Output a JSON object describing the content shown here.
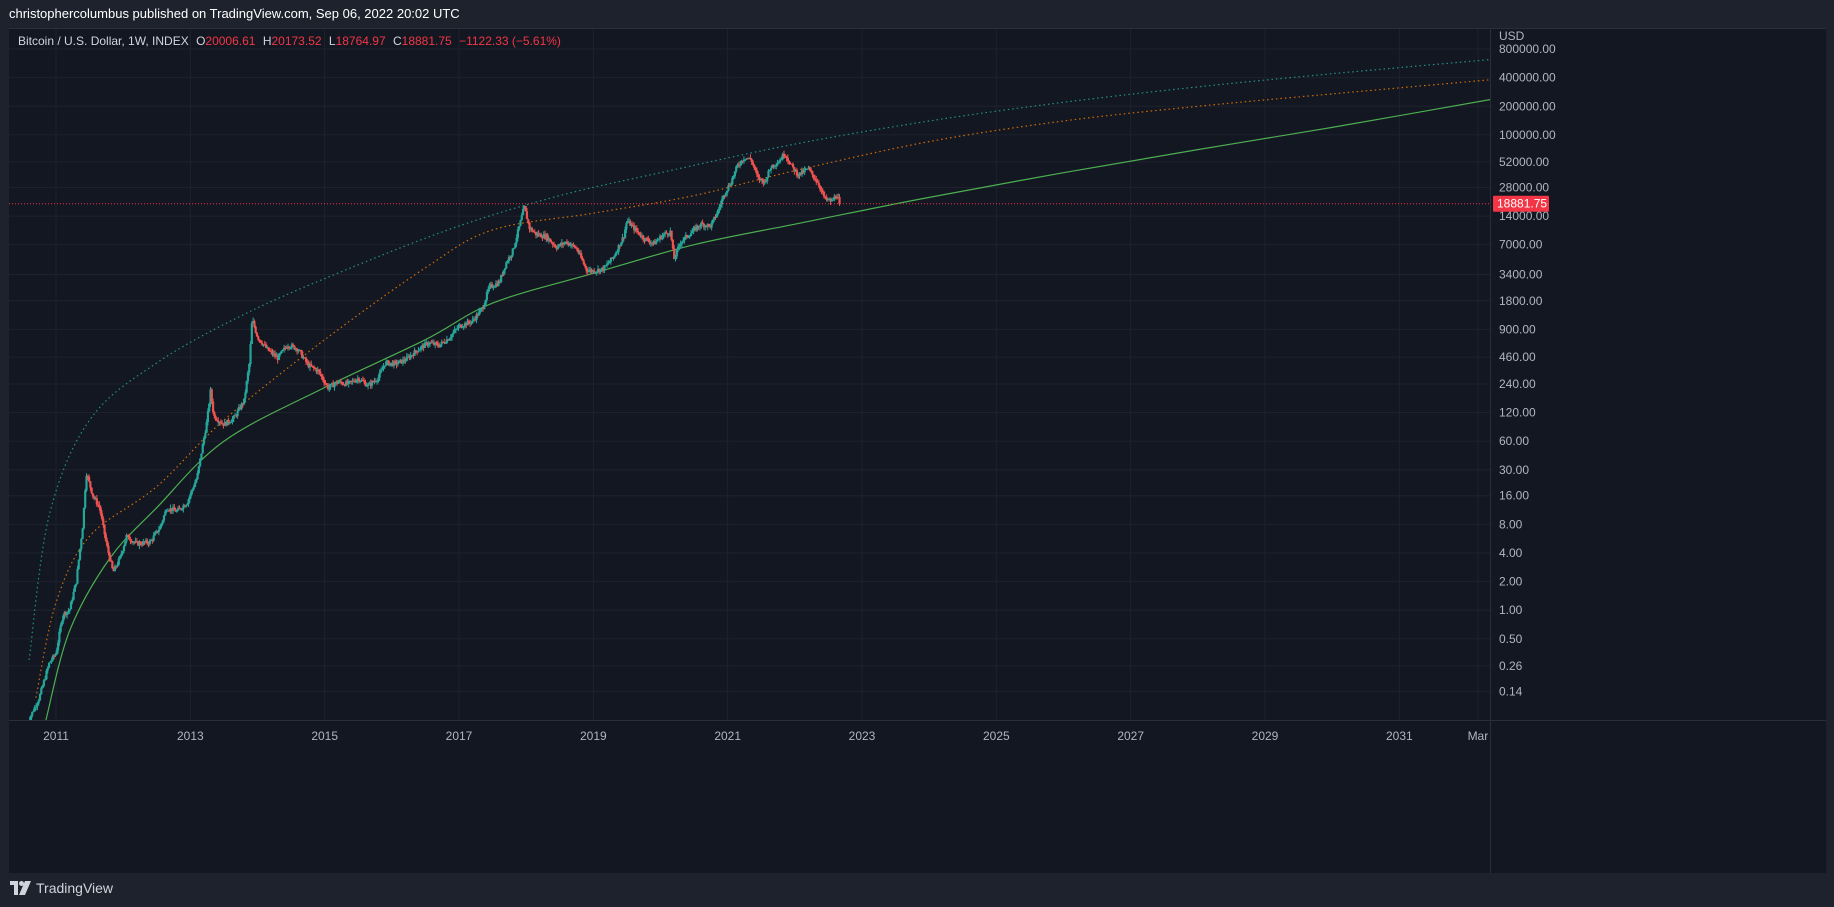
{
  "header": {
    "text": "christophercolumbus published on TradingView.com, Sep 06, 2022 20:02 UTC"
  },
  "legend": {
    "symbol": "Bitcoin / U.S. Dollar, 1W, INDEX",
    "o_label": "O",
    "o_value": "20006.61",
    "h_label": "H",
    "h_value": "20173.52",
    "l_label": "L",
    "l_value": "18764.97",
    "c_label": "C",
    "c_value": "18881.75",
    "change": "−1122.33 (−5.61%)"
  },
  "footer": {
    "brand": "TradingView",
    "logo_icon": "tradingview-logo-icon"
  },
  "colors": {
    "background": "#131722",
    "up": "#26a69a",
    "down": "#ef5350",
    "support": "#4caf50",
    "mid": "#f57c00",
    "top": "#26a69a",
    "price_line": "#f23645"
  },
  "chart_data": {
    "type": "candlestick",
    "title": "Bitcoin / U.S. Dollar, 1W, INDEX",
    "currency_label": "USD",
    "y_scale": "log",
    "ylim": [
      0.07,
      1300000
    ],
    "xlim": [
      2010.3,
      2032.35
    ],
    "y_ticks": [
      {
        "value": 800000,
        "label": "800000.00"
      },
      {
        "value": 400000,
        "label": "400000.00"
      },
      {
        "value": 200000,
        "label": "200000.00"
      },
      {
        "value": 100000,
        "label": "100000.00"
      },
      {
        "value": 52000,
        "label": "52000.00"
      },
      {
        "value": 28000,
        "label": "28000.00"
      },
      {
        "value": 14000,
        "label": "14000.00"
      },
      {
        "value": 7000,
        "label": "7000.00"
      },
      {
        "value": 3400,
        "label": "3400.00"
      },
      {
        "value": 1800,
        "label": "1800.00"
      },
      {
        "value": 900,
        "label": "900.00"
      },
      {
        "value": 460,
        "label": "460.00"
      },
      {
        "value": 240,
        "label": "240.00"
      },
      {
        "value": 120,
        "label": "120.00"
      },
      {
        "value": 60,
        "label": "60.00"
      },
      {
        "value": 30,
        "label": "30.00"
      },
      {
        "value": 16,
        "label": "16.00"
      },
      {
        "value": 8,
        "label": "8.00"
      },
      {
        "value": 4,
        "label": "4.00"
      },
      {
        "value": 2,
        "label": "2.00"
      },
      {
        "value": 1,
        "label": "1.00"
      },
      {
        "value": 0.5,
        "label": "0.50"
      },
      {
        "value": 0.26,
        "label": "0.26"
      },
      {
        "value": 0.14,
        "label": "0.14"
      }
    ],
    "x_ticks": [
      {
        "value": 2011,
        "label": "2011"
      },
      {
        "value": 2013,
        "label": "2013"
      },
      {
        "value": 2015,
        "label": "2015"
      },
      {
        "value": 2017,
        "label": "2017"
      },
      {
        "value": 2019,
        "label": "2019"
      },
      {
        "value": 2021,
        "label": "2021"
      },
      {
        "value": 2023,
        "label": "2023"
      },
      {
        "value": 2025,
        "label": "2025"
      },
      {
        "value": 2027,
        "label": "2027"
      },
      {
        "value": 2029,
        "label": "2029"
      },
      {
        "value": 2031,
        "label": "2031"
      },
      {
        "value": 2032.17,
        "label": "Mar"
      }
    ],
    "last_price": {
      "value": 18881.75,
      "label": "18881.75"
    },
    "price_path": [
      [
        2010.55,
        0.06
      ],
      [
        2010.75,
        0.12
      ],
      [
        2010.9,
        0.28
      ],
      [
        2011.0,
        0.35
      ],
      [
        2011.1,
        0.9
      ],
      [
        2011.2,
        1.0
      ],
      [
        2011.3,
        2.0
      ],
      [
        2011.4,
        8.0
      ],
      [
        2011.45,
        28.0
      ],
      [
        2011.55,
        16.0
      ],
      [
        2011.65,
        12.0
      ],
      [
        2011.75,
        5.0
      ],
      [
        2011.85,
        2.5
      ],
      [
        2011.95,
        3.5
      ],
      [
        2012.05,
        6.0
      ],
      [
        2012.2,
        5.0
      ],
      [
        2012.4,
        5.2
      ],
      [
        2012.55,
        7.5
      ],
      [
        2012.65,
        12.0
      ],
      [
        2012.8,
        11.0
      ],
      [
        2012.95,
        13.5
      ],
      [
        2013.1,
        25.0
      ],
      [
        2013.25,
        100.0
      ],
      [
        2013.3,
        200.0
      ],
      [
        2013.35,
        110.0
      ],
      [
        2013.5,
        90.0
      ],
      [
        2013.65,
        105.0
      ],
      [
        2013.8,
        160.0
      ],
      [
        2013.88,
        400.0
      ],
      [
        2013.92,
        1150.0
      ],
      [
        2014.0,
        750.0
      ],
      [
        2014.15,
        550.0
      ],
      [
        2014.3,
        450.0
      ],
      [
        2014.45,
        620.0
      ],
      [
        2014.6,
        560.0
      ],
      [
        2014.75,
        380.0
      ],
      [
        2014.9,
        330.0
      ],
      [
        2015.05,
        220.0
      ],
      [
        2015.2,
        250.0
      ],
      [
        2015.35,
        240.0
      ],
      [
        2015.5,
        275.0
      ],
      [
        2015.65,
        230.0
      ],
      [
        2015.8,
        280.0
      ],
      [
        2015.9,
        400.0
      ],
      [
        2016.05,
        390.0
      ],
      [
        2016.2,
        430.0
      ],
      [
        2016.4,
        560.0
      ],
      [
        2016.55,
        650.0
      ],
      [
        2016.7,
        610.0
      ],
      [
        2016.85,
        730.0
      ],
      [
        2017.0,
        970.0
      ],
      [
        2017.2,
        1100.0
      ],
      [
        2017.35,
        1500.0
      ],
      [
        2017.45,
        2500.0
      ],
      [
        2017.6,
        2800.0
      ],
      [
        2017.7,
        4500.0
      ],
      [
        2017.8,
        6000.0
      ],
      [
        2017.9,
        11000.0
      ],
      [
        2017.97,
        17500.0
      ],
      [
        2018.05,
        10500.0
      ],
      [
        2018.15,
        9000.0
      ],
      [
        2018.3,
        8500.0
      ],
      [
        2018.45,
        6600.0
      ],
      [
        2018.6,
        7500.0
      ],
      [
        2018.75,
        6400.0
      ],
      [
        2018.9,
        3800.0
      ],
      [
        2019.0,
        3700.0
      ],
      [
        2019.15,
        3900.0
      ],
      [
        2019.3,
        5200.0
      ],
      [
        2019.45,
        8500.0
      ],
      [
        2019.5,
        12500.0
      ],
      [
        2019.6,
        10500.0
      ],
      [
        2019.75,
        8200.0
      ],
      [
        2019.9,
        7200.0
      ],
      [
        2020.05,
        9000.0
      ],
      [
        2020.15,
        9600.0
      ],
      [
        2020.2,
        4900.0
      ],
      [
        2020.3,
        7500.0
      ],
      [
        2020.45,
        9300.0
      ],
      [
        2020.6,
        11500.0
      ],
      [
        2020.75,
        11000.0
      ],
      [
        2020.85,
        15500.0
      ],
      [
        2020.95,
        24000.0
      ],
      [
        2021.05,
        32000.0
      ],
      [
        2021.15,
        48000.0
      ],
      [
        2021.25,
        58000.0
      ],
      [
        2021.35,
        55000.0
      ],
      [
        2021.45,
        35000.0
      ],
      [
        2021.55,
        32000.0
      ],
      [
        2021.65,
        47000.0
      ],
      [
        2021.75,
        52000.0
      ],
      [
        2021.85,
        64000.0
      ],
      [
        2021.95,
        47000.0
      ],
      [
        2022.05,
        38000.0
      ],
      [
        2022.2,
        44000.0
      ],
      [
        2022.35,
        31000.0
      ],
      [
        2022.45,
        21000.0
      ],
      [
        2022.55,
        20000.0
      ],
      [
        2022.62,
        23500.0
      ],
      [
        2022.68,
        18881.75
      ]
    ],
    "curves": [
      {
        "name": "top-band",
        "style": "dotted",
        "color": "#26a69a",
        "points": [
          [
            2010.6,
            0.3
          ],
          [
            2010.9,
            10.0
          ],
          [
            2011.5,
            100.0
          ],
          [
            2012.5,
            400.0
          ],
          [
            2013.9,
            1400.0
          ],
          [
            2015.5,
            4300.0
          ],
          [
            2017.0,
            11000.0
          ],
          [
            2018.5,
            23000.0
          ],
          [
            2020.0,
            40000.0
          ],
          [
            2022.0,
            80000.0
          ],
          [
            2024.0,
            140000.0
          ],
          [
            2026.0,
            220000.0
          ],
          [
            2028.0,
            320000.0
          ],
          [
            2030.0,
            440000.0
          ],
          [
            2032.35,
            620000.0
          ]
        ]
      },
      {
        "name": "mid-band",
        "style": "dotted",
        "color": "#f57c00",
        "points": [
          [
            2010.7,
            0.12
          ],
          [
            2011.0,
            1.2
          ],
          [
            2011.5,
            6.0
          ],
          [
            2012.5,
            20.0
          ],
          [
            2013.5,
            100.0
          ],
          [
            2015.0,
            700.0
          ],
          [
            2016.5,
            4000.0
          ],
          [
            2017.5,
            10000.0
          ],
          [
            2019.0,
            15000.0
          ],
          [
            2020.5,
            23000.0
          ],
          [
            2022.0,
            42000.0
          ],
          [
            2024.0,
            85000.0
          ],
          [
            2026.0,
            140000.0
          ],
          [
            2028.0,
            200000.0
          ],
          [
            2030.0,
            270000.0
          ],
          [
            2032.35,
            380000.0
          ]
        ]
      },
      {
        "name": "support-band",
        "style": "solid",
        "color": "#4caf50",
        "points": [
          [
            2010.85,
            0.07
          ],
          [
            2011.2,
            0.6
          ],
          [
            2011.8,
            3.5
          ],
          [
            2012.5,
            12.0
          ],
          [
            2013.5,
            60.0
          ],
          [
            2015.0,
            220.0
          ],
          [
            2016.5,
            700.0
          ],
          [
            2017.5,
            1700.0
          ],
          [
            2019.0,
            3500.0
          ],
          [
            2020.5,
            7000.0
          ],
          [
            2022.0,
            11500.0
          ],
          [
            2023.0,
            16000.0
          ],
          [
            2024.0,
            22000.0
          ],
          [
            2026.0,
            40000.0
          ],
          [
            2028.0,
            70000.0
          ],
          [
            2030.0,
            120000.0
          ],
          [
            2032.35,
            235000.0
          ]
        ]
      }
    ]
  }
}
